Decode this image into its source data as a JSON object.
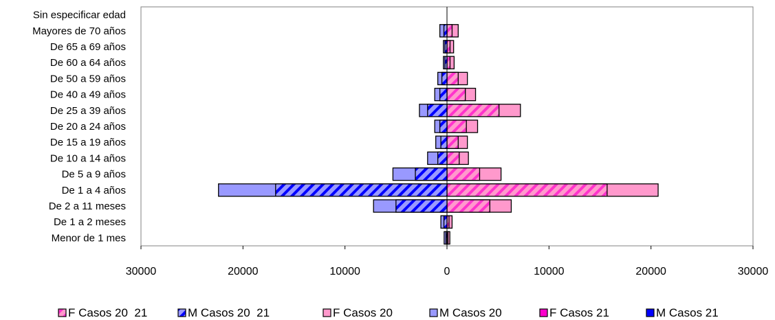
{
  "chart_data": {
    "type": "bar",
    "orientation": "horizontal",
    "categories": [
      "Sin especificar edad",
      "Mayores de 70 años",
      "De 65 a 69 años",
      "De 60 a 64 años",
      "De 50 a 59 años",
      "De 40 a 49 años",
      "De 25 a 39 años",
      "De 20 a 24 años",
      "De 15 a 19 años",
      "De 10 a 14 años",
      "De 5 a 9 años",
      "De 1 a 4 años",
      "De 2 a 11 meses",
      "De 1 a 2 meses",
      "Menor de 1 mes"
    ],
    "series": [
      {
        "name": "F Casos 20  21",
        "side": "right",
        "pattern": "hatch",
        "color": "#ff66cc",
        "values": [
          0,
          1100,
          650,
          700,
          2000,
          2800,
          7200,
          3000,
          2000,
          2100,
          5300,
          20700,
          6300,
          500,
          280
        ]
      },
      {
        "name": "M Casos 20  21",
        "side": "left",
        "pattern": "hatch",
        "color": "#3333ff",
        "values": [
          0,
          700,
          350,
          350,
          900,
          1200,
          2700,
          1200,
          1100,
          1900,
          5300,
          22400,
          7200,
          600,
          280
        ]
      },
      {
        "name": "F Casos 20",
        "side": "right",
        "pattern": "solid",
        "color": "#ff99cc",
        "values": [
          0,
          1100,
          650,
          700,
          2000,
          2800,
          7200,
          3000,
          2000,
          2100,
          5300,
          20700,
          6300,
          500,
          280
        ]
      },
      {
        "name": "M Casos 20",
        "side": "left",
        "pattern": "solid",
        "color": "#9999ff",
        "values": [
          0,
          700,
          350,
          350,
          900,
          1200,
          2700,
          1200,
          1100,
          1900,
          5300,
          22400,
          7200,
          600,
          280
        ]
      },
      {
        "name": "F Casos 21",
        "side": "right",
        "pattern": "hatch-front",
        "color": "#ff66cc",
        "values": [
          0,
          500,
          300,
          300,
          1100,
          1800,
          5100,
          1900,
          1100,
          1200,
          3200,
          15700,
          4200,
          200,
          100
        ]
      },
      {
        "name": "M Casos 21",
        "side": "left",
        "pattern": "hatch-front",
        "color": "#0000cc",
        "values": [
          0,
          300,
          200,
          200,
          500,
          700,
          1900,
          700,
          600,
          900,
          3100,
          16800,
          5000,
          300,
          100
        ]
      }
    ],
    "x_ticks": [
      "30000",
      "20000",
      "10000",
      "0",
      "10000",
      "20000",
      "30000"
    ],
    "xlim": [
      -30000,
      30000
    ],
    "title": "",
    "xlabel": "",
    "ylabel": "",
    "grid": false,
    "legend_position": "bottom"
  }
}
